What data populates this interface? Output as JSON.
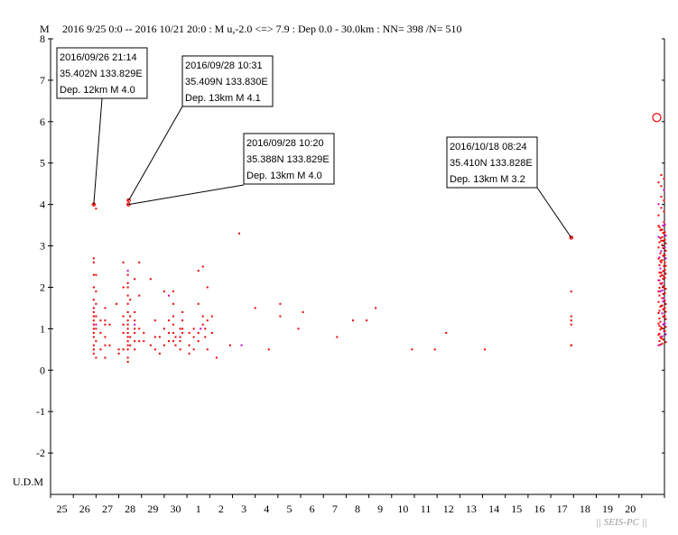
{
  "chart_data": {
    "type": "scatter",
    "ylabel": "M",
    "header": "2016 9/25 0:0 -- 2016 10/21 20:0  : M u,-2.0 <=> 7.9   :  Dep 0.0 - 30.0km :  NN= 398 /N= 510",
    "footer_label": "U.D.M",
    "watermark": "|| SEIS-PC ||",
    "ylim": [
      -3,
      8
    ],
    "y_ticks": [
      "8",
      "7",
      "6",
      "5",
      "4",
      "3",
      "2",
      "1",
      "0",
      "-1",
      "-2"
    ],
    "x_ticks": [
      "25",
      "26",
      "27",
      "28",
      "29",
      "30",
      "1",
      "2",
      "3",
      "4",
      "5",
      "6",
      "7",
      "8",
      "9",
      "10",
      "11",
      "12",
      "13",
      "14",
      "15",
      "16",
      "17",
      "18",
      "19",
      "20"
    ],
    "x_start": "2016-09-25",
    "x_days": 27,
    "colors": {
      "point": "#ee0000",
      "deep_point": "#cc00cc",
      "circle": "#ee0000",
      "line": "#000000"
    },
    "points": [
      [
        1.9,
        4.0
      ],
      [
        1.9,
        2.7
      ],
      [
        1.9,
        2.6
      ],
      [
        1.9,
        2.3
      ],
      [
        1.9,
        2.0
      ],
      [
        1.9,
        1.7
      ],
      [
        1.9,
        1.5
      ],
      [
        1.9,
        1.4
      ],
      [
        1.9,
        1.3
      ],
      [
        1.9,
        1.2
      ],
      [
        1.9,
        1.1
      ],
      [
        1.9,
        1.0
      ],
      [
        1.9,
        0.9
      ],
      [
        1.9,
        0.8
      ],
      [
        1.9,
        0.6
      ],
      [
        1.9,
        0.5
      ],
      [
        1.9,
        0.4
      ],
      [
        2.0,
        3.9
      ],
      [
        2.0,
        2.3
      ],
      [
        2.0,
        1.9
      ],
      [
        2.0,
        1.6
      ],
      [
        2.0,
        1.3
      ],
      [
        2.0,
        1.0
      ],
      [
        2.0,
        0.7
      ],
      [
        2.0,
        0.3
      ],
      [
        2.2,
        1.2
      ],
      [
        2.2,
        0.9
      ],
      [
        2.2,
        0.5
      ],
      [
        2.4,
        1.5
      ],
      [
        2.4,
        1.2
      ],
      [
        2.4,
        1.1
      ],
      [
        2.4,
        0.8
      ],
      [
        2.4,
        0.6
      ],
      [
        2.4,
        0.3
      ],
      [
        2.6,
        1.1
      ],
      [
        2.6,
        0.6
      ],
      [
        2.9,
        1.6
      ],
      [
        3.0,
        0.5
      ],
      [
        3.0,
        0.4
      ],
      [
        3.2,
        2.6
      ],
      [
        3.2,
        2.0
      ],
      [
        3.2,
        1.3
      ],
      [
        3.2,
        1.1
      ],
      [
        3.2,
        0.9
      ],
      [
        3.2,
        0.5
      ],
      [
        3.4,
        4.0
      ],
      [
        3.4,
        4.1
      ],
      [
        3.4,
        2.3
      ],
      [
        3.4,
        2.1
      ],
      [
        3.4,
        2.0
      ],
      [
        3.4,
        1.8
      ],
      [
        3.4,
        1.6
      ],
      [
        3.4,
        1.4
      ],
      [
        3.4,
        1.2
      ],
      [
        3.4,
        1.1
      ],
      [
        3.4,
        1.0
      ],
      [
        3.4,
        0.9
      ],
      [
        3.4,
        0.8
      ],
      [
        3.4,
        0.7
      ],
      [
        3.4,
        0.6
      ],
      [
        3.4,
        0.5
      ],
      [
        3.4,
        0.3
      ],
      [
        3.4,
        0.2
      ],
      [
        3.5,
        1.7
      ],
      [
        3.5,
        1.3
      ],
      [
        3.5,
        0.8
      ],
      [
        3.5,
        0.6
      ],
      [
        3.7,
        2.2
      ],
      [
        3.7,
        1.4
      ],
      [
        3.7,
        1.2
      ],
      [
        3.7,
        1.0
      ],
      [
        3.7,
        0.9
      ],
      [
        3.7,
        0.7
      ],
      [
        3.7,
        0.5
      ],
      [
        3.9,
        2.6
      ],
      [
        3.9,
        1.8
      ],
      [
        3.9,
        1.0
      ],
      [
        3.9,
        0.7
      ],
      [
        4.1,
        0.9
      ],
      [
        4.1,
        0.7
      ],
      [
        4.4,
        0.6
      ],
      [
        4.4,
        2.2
      ],
      [
        4.6,
        1.2
      ],
      [
        4.6,
        0.8
      ],
      [
        4.6,
        0.5
      ],
      [
        4.8,
        0.8
      ],
      [
        4.8,
        0.4
      ],
      [
        5.0,
        1.9
      ],
      [
        5.0,
        1.0
      ],
      [
        5.0,
        0.6
      ],
      [
        5.2,
        1.2
      ],
      [
        5.2,
        0.9
      ],
      [
        5.2,
        0.7
      ],
      [
        5.4,
        1.9
      ],
      [
        5.4,
        1.6
      ],
      [
        5.4,
        1.3
      ],
      [
        5.4,
        1.1
      ],
      [
        5.4,
        0.9
      ],
      [
        5.4,
        0.7
      ],
      [
        5.5,
        0.8
      ],
      [
        5.5,
        0.6
      ],
      [
        5.7,
        1.0
      ],
      [
        5.7,
        0.8
      ],
      [
        5.7,
        0.7
      ],
      [
        5.7,
        0.5
      ],
      [
        5.8,
        1.4
      ],
      [
        5.8,
        1.2
      ],
      [
        5.8,
        1.0
      ],
      [
        5.8,
        0.9
      ],
      [
        6.1,
        0.9
      ],
      [
        6.1,
        0.6
      ],
      [
        6.1,
        0.4
      ],
      [
        6.3,
        1.0
      ],
      [
        6.3,
        0.8
      ],
      [
        6.3,
        0.5
      ],
      [
        6.5,
        2.4
      ],
      [
        6.5,
        1.6
      ],
      [
        6.5,
        0.9
      ],
      [
        6.5,
        0.7
      ],
      [
        6.7,
        2.5
      ],
      [
        6.7,
        1.3
      ],
      [
        6.7,
        1.1
      ],
      [
        6.8,
        1.0
      ],
      [
        6.8,
        0.8
      ],
      [
        6.9,
        2.0
      ],
      [
        6.9,
        1.2
      ],
      [
        6.9,
        0.5
      ],
      [
        7.1,
        1.3
      ],
      [
        7.1,
        0.9
      ],
      [
        7.3,
        0.3
      ],
      [
        7.9,
        0.6
      ],
      [
        8.3,
        3.3
      ],
      [
        9.0,
        1.5
      ],
      [
        9.6,
        0.5
      ],
      [
        10.1,
        1.6
      ],
      [
        10.1,
        1.3
      ],
      [
        10.9,
        1.0
      ],
      [
        11.1,
        1.4
      ],
      [
        12.6,
        0.8
      ],
      [
        13.3,
        1.2
      ],
      [
        13.9,
        1.2
      ],
      [
        14.3,
        1.5
      ],
      [
        15.9,
        0.5
      ],
      [
        16.9,
        0.5
      ],
      [
        17.4,
        0.9
      ],
      [
        19.1,
        0.5
      ],
      [
        22.9,
        3.2
      ],
      [
        22.9,
        1.9
      ],
      [
        22.9,
        1.3
      ],
      [
        22.9,
        1.2
      ],
      [
        22.9,
        1.1
      ],
      [
        22.9,
        0.6
      ],
      [
        22.9,
        0.6
      ]
    ],
    "deep_points": [
      [
        2.0,
        1.1
      ],
      [
        3.4,
        2.4
      ],
      [
        3.7,
        1.1
      ],
      [
        5.2,
        1.8
      ],
      [
        6.6,
        1.0
      ],
      [
        8.4,
        0.6
      ]
    ],
    "dense_cluster": {
      "x": 26.9,
      "y_min": 0.6,
      "y_max": 4.8
    },
    "big_circle": {
      "x": 26.9,
      "y": 6.1
    },
    "annotations": [
      {
        "lines": [
          "2016/09/26 21:14",
          "35.402N   133.829E",
          "Dep. 12km    M 4.0"
        ],
        "x": 1.9,
        "y": 4.0
      },
      {
        "lines": [
          "2016/09/28 10:31",
          "35.409N   133.830E",
          "Dep. 13km    M 4.1"
        ],
        "x": 3.44,
        "y": 4.1
      },
      {
        "lines": [
          "2016/09/28 10:20",
          "35.388N   133.829E",
          "Dep. 13km    M 4.0"
        ],
        "x": 3.43,
        "y": 4.0
      },
      {
        "lines": [
          "2016/10/18 08:24",
          "35.410N   133.828E",
          "Dep. 13km    M 3.2"
        ],
        "x": 22.9,
        "y": 3.2
      }
    ]
  }
}
